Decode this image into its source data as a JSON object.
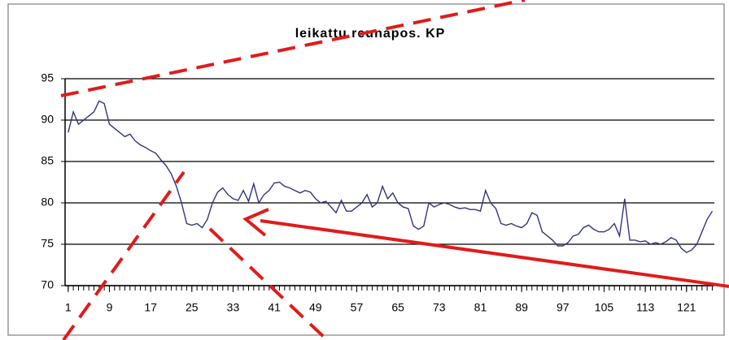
{
  "chart_data": {
    "type": "line",
    "title": "leikattu reunapos. KP",
    "x": [
      1,
      2,
      3,
      4,
      5,
      6,
      7,
      8,
      9,
      10,
      11,
      12,
      13,
      14,
      15,
      16,
      17,
      18,
      19,
      20,
      21,
      22,
      23,
      24,
      25,
      26,
      27,
      28,
      29,
      30,
      31,
      32,
      33,
      34,
      35,
      36,
      37,
      38,
      39,
      40,
      41,
      42,
      43,
      44,
      45,
      46,
      47,
      48,
      49,
      50,
      51,
      52,
      53,
      54,
      55,
      56,
      57,
      58,
      59,
      60,
      61,
      62,
      63,
      64,
      65,
      66,
      67,
      68,
      69,
      70,
      71,
      72,
      73,
      74,
      75,
      76,
      77,
      78,
      79,
      80,
      81,
      82,
      83,
      84,
      85,
      86,
      87,
      88,
      89,
      90,
      91,
      92,
      93,
      94,
      95,
      96,
      97,
      98,
      99,
      100,
      101,
      102,
      103,
      104,
      105,
      106,
      107,
      108,
      109,
      110,
      111,
      112,
      113,
      114,
      115,
      116,
      117,
      118,
      119,
      120,
      121,
      122,
      123,
      124,
      125,
      126
    ],
    "series": [
      {
        "color": "#33337f",
        "values": [
          88.5,
          91,
          89.5,
          90,
          90.5,
          91,
          92.3,
          92,
          89.5,
          89,
          88.5,
          88,
          88.3,
          87.5,
          87,
          86.7,
          86.3,
          86,
          85.2,
          84.5,
          83.5,
          82,
          80,
          77.5,
          77.3,
          77.5,
          77,
          78,
          80,
          81.3,
          81.8,
          81,
          80.5,
          80.3,
          81.5,
          80.2,
          82.3,
          80,
          81,
          81.5,
          82.4,
          82.5,
          82,
          81.8,
          81.5,
          81.2,
          81.5,
          81.3,
          80.5,
          80,
          80.2,
          79.5,
          78.8,
          80.3,
          79,
          79,
          79.5,
          80,
          81,
          79.5,
          80,
          82,
          80.5,
          81.2,
          80,
          79.5,
          79.3,
          77.2,
          76.8,
          77.2,
          80,
          79.5,
          79.8,
          80,
          79.8,
          79.5,
          79.3,
          79.4,
          79.2,
          79.2,
          79,
          81.5,
          80,
          79.3,
          77.5,
          77.3,
          77.5,
          77.2,
          77,
          77.5,
          78.8,
          78.5,
          76.5,
          76,
          75.5,
          74.8,
          74.8,
          75.2,
          76,
          76.2,
          77,
          77.3,
          76.8,
          76.5,
          76.5,
          76.8,
          77.5,
          76,
          80.5,
          75.5,
          75.5,
          75.3,
          75.4,
          75,
          75.2,
          75,
          75.3,
          75.8,
          75.5,
          74.5,
          74,
          74.3,
          75,
          76.5,
          78,
          79
        ]
      }
    ],
    "xlim": [
      0.4,
      126.4
    ],
    "xticks": [
      1,
      9,
      17,
      25,
      33,
      41,
      49,
      57,
      65,
      73,
      81,
      89,
      97,
      105,
      113,
      121
    ],
    "ylim": [
      70,
      95
    ],
    "yticks": [
      70,
      75,
      80,
      85,
      90,
      95
    ],
    "grid": true
  }
}
